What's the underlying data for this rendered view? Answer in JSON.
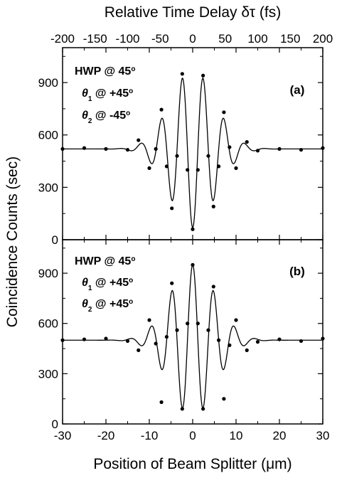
{
  "chart_data": [
    {
      "type": "scatter",
      "panel_label": "(a)",
      "annotations": [
        {
          "sym": "",
          "sub": "",
          "text": "HWP @ 45",
          "deg": "o"
        },
        {
          "sym": "θ",
          "sub": "1",
          "text": " @ +45",
          "deg": "o"
        },
        {
          "sym": "θ",
          "sub": "2",
          "text": " @ -45",
          "deg": "o"
        }
      ],
      "xlim": [
        -30,
        30
      ],
      "ylim": [
        0,
        1100
      ],
      "yticks": [
        0,
        300,
        600,
        900
      ],
      "fit": {
        "baseline": 520,
        "amplitude": 450,
        "sign": -1,
        "sigma": 5.2,
        "period": 4.8
      },
      "data_samples": {
        "x": [
          -30,
          -25,
          -20,
          -15,
          -12.5,
          -10,
          -8.5,
          -7.2,
          -6,
          -4.8,
          -3.6,
          -2.4,
          -1.2,
          0,
          1.2,
          2.4,
          3.6,
          4.8,
          6,
          7.2,
          8.5,
          10,
          12.5,
          15,
          20,
          25,
          30
        ],
        "y": [
          520,
          525,
          520,
          515,
          570,
          410,
          520,
          745,
          420,
          180,
          480,
          950,
          400,
          60,
          400,
          940,
          480,
          190,
          420,
          730,
          530,
          410,
          560,
          510,
          520,
          515,
          525
        ]
      }
    },
    {
      "type": "scatter",
      "panel_label": "(b)",
      "annotations": [
        {
          "sym": "",
          "sub": "",
          "text": "HWP @ 45",
          "deg": "o"
        },
        {
          "sym": "θ",
          "sub": "1",
          "text": " @ +45",
          "deg": "o"
        },
        {
          "sym": "θ",
          "sub": "2",
          "text": " @ +45",
          "deg": "o"
        }
      ],
      "xlim": [
        -30,
        30
      ],
      "ylim": [
        0,
        1100
      ],
      "yticks": [
        0,
        300,
        600,
        900
      ],
      "fit": {
        "baseline": 500,
        "amplitude": 450,
        "sign": 1,
        "sigma": 5.2,
        "period": 4.8
      },
      "data_samples": {
        "x": [
          -30,
          -25,
          -20,
          -15,
          -12.5,
          -10,
          -8.5,
          -7.2,
          -6,
          -4.8,
          -3.6,
          -2.4,
          -1.2,
          0,
          1.2,
          2.4,
          3.6,
          4.8,
          6,
          7.2,
          8.5,
          10,
          12.5,
          15,
          20,
          25,
          30
        ],
        "y": [
          500,
          505,
          510,
          495,
          440,
          620,
          480,
          130,
          520,
          840,
          560,
          90,
          600,
          950,
          600,
          90,
          560,
          820,
          500,
          150,
          470,
          620,
          440,
          490,
          505,
          495,
          510
        ]
      }
    }
  ],
  "axes": {
    "xlabel": "Position of Beam Splitter (μm)",
    "ylabel": "Coincidence Counts (sec)",
    "top_xlabel": "Relative Time Delay δτ (fs)",
    "xticks": [
      -30,
      -20,
      -10,
      0,
      10,
      20,
      30
    ],
    "top_ticks": [
      -200,
      -150,
      -100,
      -50,
      0,
      50,
      100,
      150,
      200
    ],
    "top_range": [
      -200,
      200
    ]
  },
  "colors": {
    "line": "#000000",
    "marker": "#000000",
    "background": "#ffffff"
  }
}
